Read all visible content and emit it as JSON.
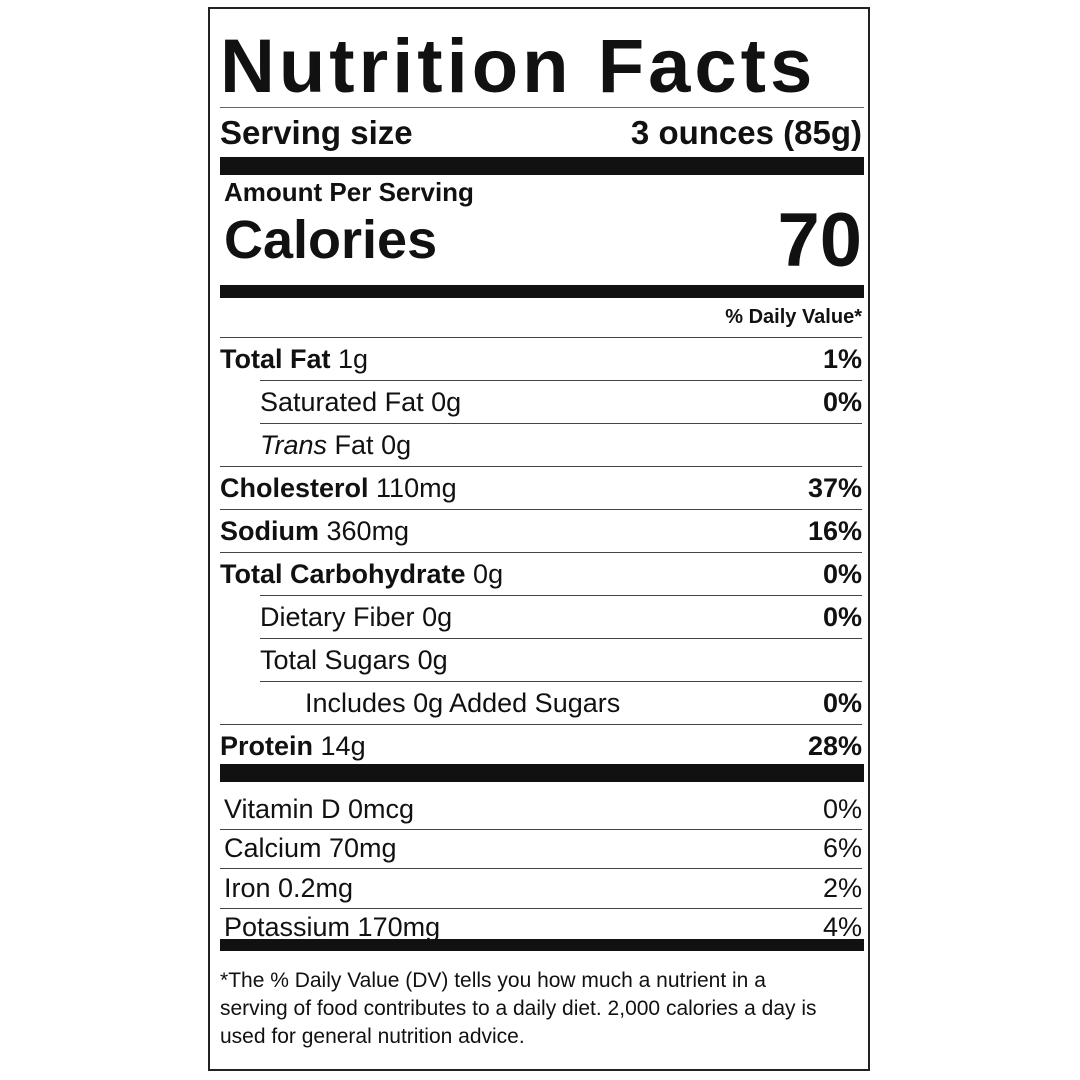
{
  "title": "Nutrition Facts",
  "serving": {
    "label": "Serving size",
    "value": "3 ounces (85g)"
  },
  "amount_per_serving": "Amount Per Serving",
  "calories": {
    "label": "Calories",
    "value": "70"
  },
  "dv_header": "% Daily Value*",
  "nutrients": [
    {
      "name": "Total Fat",
      "amount": "1g",
      "dv": "1%",
      "bold": true,
      "indent": 0
    },
    {
      "name": "Saturated Fat",
      "amount": "0g",
      "dv": "0%",
      "bold": false,
      "indent": 1
    },
    {
      "name": "Trans",
      "name2": "Fat",
      "amount": "0g",
      "dv": "",
      "bold": false,
      "indent": 1
    },
    {
      "name": "Cholesterol",
      "amount": "110mg",
      "dv": "37%",
      "bold": true,
      "indent": 0
    },
    {
      "name": "Sodium",
      "amount": "360mg",
      "dv": "16%",
      "bold": true,
      "indent": 0
    },
    {
      "name": "Total Carbohydrate",
      "amount": "0g",
      "dv": "0%",
      "bold": true,
      "indent": 0
    },
    {
      "name": "Dietary Fiber",
      "amount": "0g",
      "dv": "0%",
      "bold": false,
      "indent": 1
    },
    {
      "name": "Total Sugars",
      "amount": "0g",
      "dv": "",
      "bold": false,
      "indent": 1
    },
    {
      "name": "Includes 0g Added Sugars",
      "amount": "",
      "dv": "0%",
      "bold": false,
      "indent": 2
    },
    {
      "name": "Protein",
      "amount": "14g",
      "dv": "28%",
      "bold": true,
      "indent": 0
    }
  ],
  "vitamins": [
    {
      "name": "Vitamin D 0mcg",
      "dv": "0%"
    },
    {
      "name": "Calcium 70mg",
      "dv": "6%"
    },
    {
      "name": "Iron 0.2mg",
      "dv": "2%"
    },
    {
      "name": "Potassium 170mg",
      "dv": "4%"
    }
  ],
  "footnote_star": "*",
  "footnote": "The % Daily Value (DV) tells you how much a nutrient in a serving of food contributes to a daily diet. 2,000 calories a day is used for general nutrition advice."
}
